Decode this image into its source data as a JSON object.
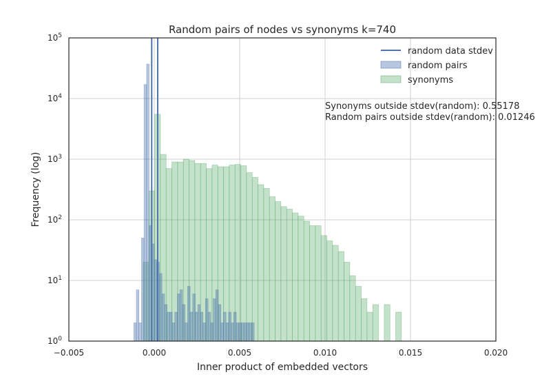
{
  "chart_data": {
    "type": "bar",
    "title": "Random pairs of nodes vs synonyms k=740",
    "xlabel": "Inner product of embedded vectors",
    "ylabel": "Frequency (log)",
    "xlim": [
      -0.005,
      0.02
    ],
    "ylim": [
      1,
      100000
    ],
    "yscale": "log",
    "grid": true,
    "x_ticks": [
      "−0.005",
      "0.000",
      "0.005",
      "0.010",
      "0.015",
      "0.020"
    ],
    "x_tick_values": [
      -0.005,
      0,
      0.005,
      0.01,
      0.015,
      0.02
    ],
    "y_ticks": [
      {
        "base": "10",
        "exp": "0",
        "value": 1
      },
      {
        "base": "10",
        "exp": "1",
        "value": 10
      },
      {
        "base": "10",
        "exp": "2",
        "value": 100
      },
      {
        "base": "10",
        "exp": "3",
        "value": 1000
      },
      {
        "base": "10",
        "exp": "4",
        "value": 10000
      },
      {
        "base": "10",
        "exp": "5",
        "value": 100000
      }
    ],
    "legend_position": "top-right",
    "legend": [
      {
        "label": "random data stdev",
        "kind": "line",
        "color": "#4c72b0"
      },
      {
        "label": "random pairs",
        "kind": "patch",
        "color": "#4c72b0"
      },
      {
        "label": "synonyms",
        "kind": "patch",
        "color": "#55a868"
      }
    ],
    "stdev_lines": [
      -0.00015,
      0.0002
    ],
    "series": [
      {
        "name": "synonyms",
        "color": "#55a868",
        "bin_start": -0.00065,
        "bin_width": 0.000336,
        "values": [
          20,
          300,
          5500,
          1200,
          700,
          900,
          900,
          1000,
          950,
          850,
          850,
          700,
          800,
          750,
          750,
          800,
          820,
          780,
          600,
          500,
          380,
          330,
          240,
          200,
          165,
          150,
          130,
          115,
          95,
          80,
          80,
          55,
          45,
          38,
          30,
          20,
          12,
          8,
          5,
          3,
          4,
          1,
          4,
          1,
          3,
          1,
          1
        ]
      },
      {
        "name": "random pairs",
        "color": "#4c72b0",
        "bins": [
          [
            -0.0012,
            2
          ],
          [
            -0.00105,
            7
          ],
          [
            -0.0009,
            2
          ],
          [
            -0.00075,
            50
          ],
          [
            -0.0006,
            17000
          ],
          [
            -0.00045,
            37000
          ],
          [
            -0.0003,
            80
          ],
          [
            -0.00015,
            40
          ],
          [
            0,
            22
          ],
          [
            0.00015,
            20
          ],
          [
            0.0003,
            13
          ],
          [
            0.00045,
            6
          ],
          [
            0.0006,
            4
          ],
          [
            0.00075,
            3
          ],
          [
            0.0009,
            3
          ],
          [
            0.00105,
            2
          ],
          [
            0.0012,
            3
          ],
          [
            0.00135,
            6
          ],
          [
            0.0015,
            7
          ],
          [
            0.00165,
            4
          ],
          [
            0.0018,
            2
          ],
          [
            0.00195,
            8
          ],
          [
            0.0021,
            3
          ],
          [
            0.00225,
            6
          ],
          [
            0.0024,
            3
          ],
          [
            0.00255,
            4
          ],
          [
            0.0027,
            3
          ],
          [
            0.00285,
            2
          ],
          [
            0.003,
            5
          ],
          [
            0.00315,
            3
          ],
          [
            0.0033,
            2
          ],
          [
            0.00345,
            5
          ],
          [
            0.0036,
            7
          ],
          [
            0.00375,
            4
          ],
          [
            0.0039,
            2
          ],
          [
            0.00405,
            3
          ],
          [
            0.0042,
            2
          ],
          [
            0.00435,
            3
          ],
          [
            0.0045,
            2
          ],
          [
            0.00465,
            3
          ],
          [
            0.0048,
            2
          ],
          [
            0.00495,
            2
          ],
          [
            0.0051,
            2
          ],
          [
            0.00525,
            2
          ],
          [
            0.0054,
            2
          ],
          [
            0.00555,
            2
          ],
          [
            0.0057,
            2
          ]
        ],
        "bin_width": 0.00015
      }
    ],
    "annotations": [
      "Synonyms outside stdev(random): 0.55178",
      "Random pairs outside stdev(random): 0.01246"
    ]
  }
}
